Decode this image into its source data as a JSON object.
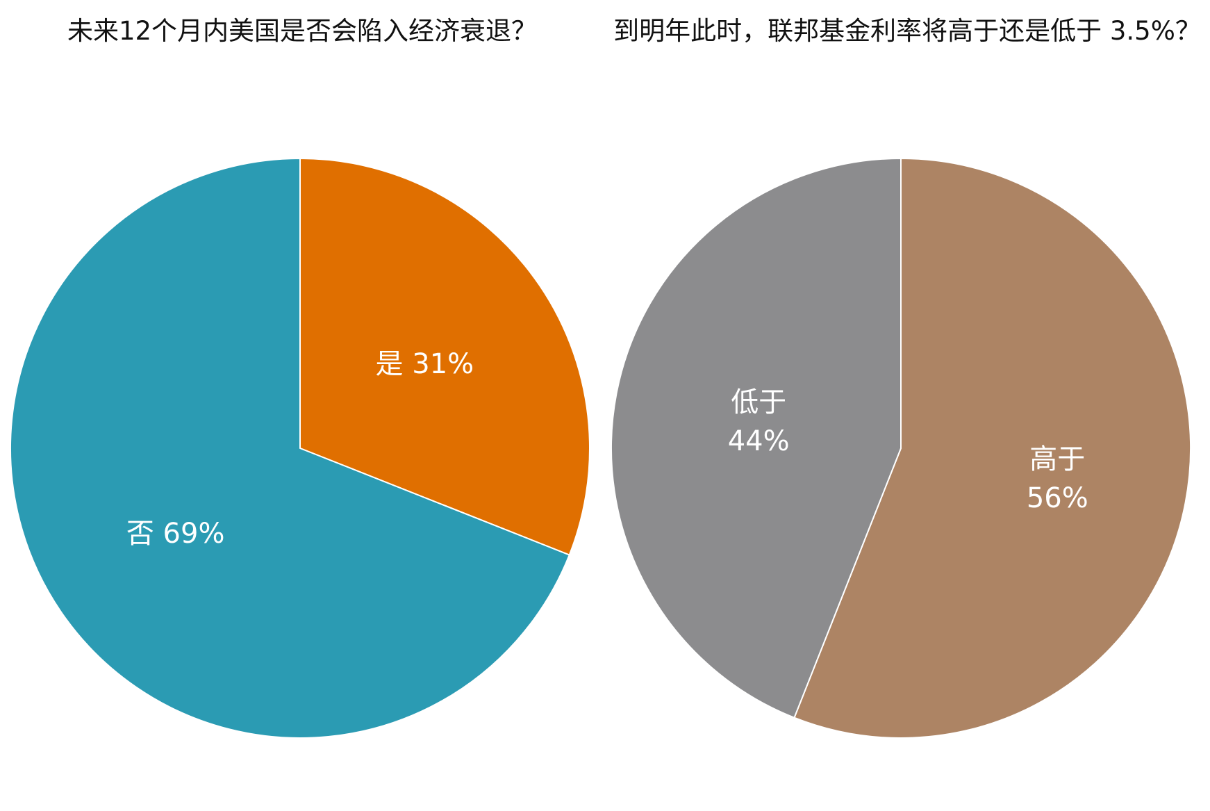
{
  "chart_data": [
    {
      "type": "pie",
      "title": "未来12个月内美国是否会陷入经济衰退？",
      "slices": [
        {
          "label": "是",
          "value": 31,
          "value_label": "31%",
          "color": "#e06f00"
        },
        {
          "label": "否",
          "value": 69,
          "value_label": "69%",
          "color": "#2b9bb3"
        }
      ]
    },
    {
      "type": "pie",
      "title": "到明年此时，联邦基金利率将高于还是低于 3.5%？",
      "slices": [
        {
          "label": "高于",
          "value": 56,
          "value_label": "56%",
          "color": "#ad8464"
        },
        {
          "label": "低于",
          "value": 44,
          "value_label": "44%",
          "color": "#8c8c8e"
        }
      ]
    }
  ]
}
